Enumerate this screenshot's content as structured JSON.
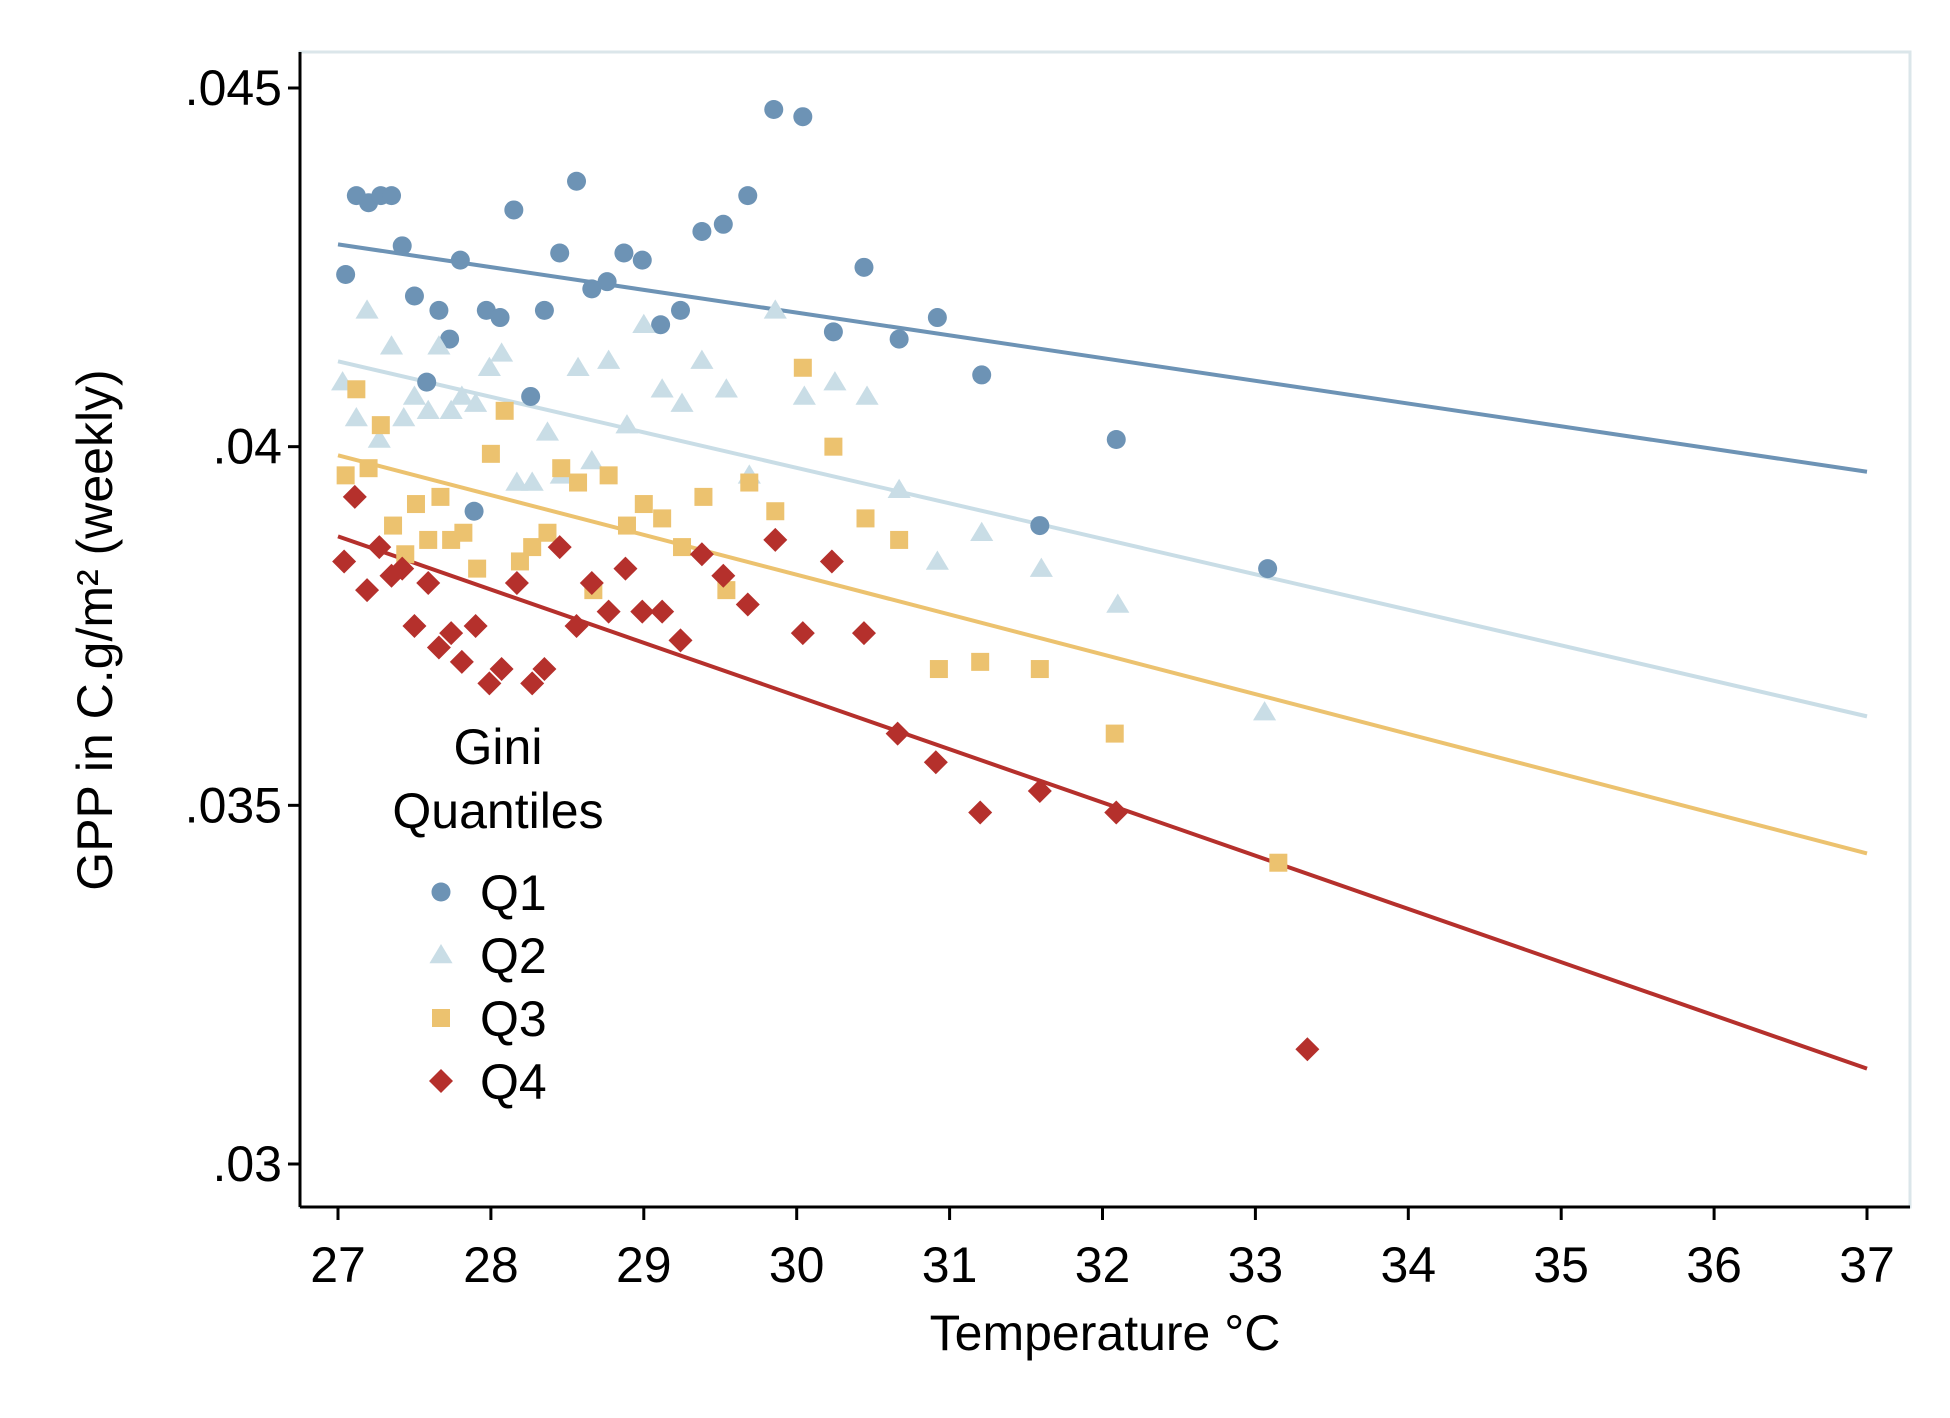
{
  "chart_data": {
    "type": "scatter",
    "title": "",
    "xlabel": "Temperature °C",
    "ylabel": "GPP in C.g/m² (weekly)",
    "xlim": [
      26.76,
      37.2
    ],
    "ylim": [
      0.0295,
      0.0455
    ],
    "x_ticks": [
      27,
      28,
      29,
      30,
      31,
      32,
      33,
      34,
      35,
      36,
      37
    ],
    "x_tick_labels": [
      "27",
      "28",
      "29",
      "30",
      "31",
      "32",
      "33",
      "34",
      "35",
      "36",
      "37"
    ],
    "y_ticks": [
      0.03,
      0.035,
      0.04,
      0.045
    ],
    "y_tick_labels": [
      ".03",
      ".035",
      ".04",
      ".045"
    ],
    "grid": false,
    "legend": {
      "title_lines": [
        "Gini",
        "Quantiles"
      ],
      "position": "lower-left inside"
    },
    "series": [
      {
        "name": "Q1",
        "color": "#6d93b5",
        "marker": "circle",
        "fit": [
          [
            27.0,
            0.04282
          ],
          [
            37.0,
            0.03965
          ]
        ],
        "points": [
          [
            27.05,
            0.0424
          ],
          [
            27.12,
            0.0435
          ],
          [
            27.2,
            0.0434
          ],
          [
            27.28,
            0.0435
          ],
          [
            27.35,
            0.0435
          ],
          [
            27.42,
            0.0428
          ],
          [
            27.5,
            0.0421
          ],
          [
            27.58,
            0.0409
          ],
          [
            27.66,
            0.0419
          ],
          [
            27.73,
            0.0415
          ],
          [
            27.8,
            0.0426
          ],
          [
            27.89,
            0.0391
          ],
          [
            27.97,
            0.0419
          ],
          [
            28.06,
            0.0418
          ],
          [
            28.15,
            0.0433
          ],
          [
            28.26,
            0.0407
          ],
          [
            28.35,
            0.0419
          ],
          [
            28.45,
            0.0427
          ],
          [
            28.56,
            0.0437
          ],
          [
            28.66,
            0.0422
          ],
          [
            28.76,
            0.0423
          ],
          [
            28.87,
            0.0427
          ],
          [
            28.99,
            0.0426
          ],
          [
            29.11,
            0.0417
          ],
          [
            29.24,
            0.0419
          ],
          [
            29.38,
            0.043
          ],
          [
            29.52,
            0.0431
          ],
          [
            29.68,
            0.0435
          ],
          [
            29.85,
            0.0447
          ],
          [
            30.04,
            0.0446
          ],
          [
            30.24,
            0.0416
          ],
          [
            30.44,
            0.0425
          ],
          [
            30.67,
            0.0415
          ],
          [
            30.92,
            0.0418
          ],
          [
            31.21,
            0.041
          ],
          [
            31.59,
            0.0389
          ],
          [
            32.09,
            0.0401
          ],
          [
            33.08,
            0.0383
          ]
        ]
      },
      {
        "name": "Q2",
        "color": "#c9dde6",
        "marker": "triangle",
        "fit": [
          [
            27.0,
            0.04119
          ],
          [
            37.0,
            0.03624
          ]
        ],
        "points": [
          [
            27.03,
            0.0409
          ],
          [
            27.12,
            0.0404
          ],
          [
            27.19,
            0.0419
          ],
          [
            27.27,
            0.0401
          ],
          [
            27.35,
            0.0414
          ],
          [
            27.43,
            0.0404
          ],
          [
            27.5,
            0.0407
          ],
          [
            27.59,
            0.0405
          ],
          [
            27.66,
            0.0414
          ],
          [
            27.74,
            0.0405
          ],
          [
            27.81,
            0.0407
          ],
          [
            27.9,
            0.0406
          ],
          [
            27.99,
            0.0411
          ],
          [
            28.07,
            0.0413
          ],
          [
            28.17,
            0.0395
          ],
          [
            28.27,
            0.0395
          ],
          [
            28.37,
            0.0402
          ],
          [
            28.46,
            0.0396
          ],
          [
            28.57,
            0.0411
          ],
          [
            28.66,
            0.0398
          ],
          [
            28.77,
            0.0412
          ],
          [
            28.89,
            0.0403
          ],
          [
            29.0,
            0.0417
          ],
          [
            29.12,
            0.0408
          ],
          [
            29.25,
            0.0406
          ],
          [
            29.38,
            0.0412
          ],
          [
            29.54,
            0.0408
          ],
          [
            29.69,
            0.0396
          ],
          [
            29.86,
            0.0419
          ],
          [
            30.05,
            0.0407
          ],
          [
            30.25,
            0.0409
          ],
          [
            30.46,
            0.0407
          ],
          [
            30.67,
            0.0394
          ],
          [
            30.92,
            0.0384
          ],
          [
            31.21,
            0.0388
          ],
          [
            31.6,
            0.0383
          ],
          [
            32.1,
            0.0378
          ],
          [
            33.06,
            0.0363
          ]
        ]
      },
      {
        "name": "Q3",
        "color": "#ecc26f",
        "marker": "square",
        "fit": [
          [
            27.0,
            0.03988
          ],
          [
            37.0,
            0.03433
          ]
        ],
        "points": [
          [
            27.05,
            0.0396
          ],
          [
            27.12,
            0.0408
          ],
          [
            27.2,
            0.0397
          ],
          [
            27.28,
            0.0403
          ],
          [
            27.36,
            0.0389
          ],
          [
            27.44,
            0.0385
          ],
          [
            27.51,
            0.0392
          ],
          [
            27.59,
            0.0387
          ],
          [
            27.67,
            0.0393
          ],
          [
            27.74,
            0.0387
          ],
          [
            27.82,
            0.0388
          ],
          [
            27.91,
            0.0383
          ],
          [
            28.0,
            0.0399
          ],
          [
            28.09,
            0.0405
          ],
          [
            28.19,
            0.0384
          ],
          [
            28.27,
            0.0386
          ],
          [
            28.37,
            0.0388
          ],
          [
            28.46,
            0.0397
          ],
          [
            28.57,
            0.0395
          ],
          [
            28.67,
            0.038
          ],
          [
            28.77,
            0.0396
          ],
          [
            28.89,
            0.0389
          ],
          [
            29.0,
            0.0392
          ],
          [
            29.12,
            0.039
          ],
          [
            29.25,
            0.0386
          ],
          [
            29.39,
            0.0393
          ],
          [
            29.54,
            0.038
          ],
          [
            29.69,
            0.0395
          ],
          [
            29.86,
            0.0391
          ],
          [
            30.04,
            0.0411
          ],
          [
            30.24,
            0.04
          ],
          [
            30.45,
            0.039
          ],
          [
            30.67,
            0.0387
          ],
          [
            30.93,
            0.0369
          ],
          [
            31.2,
            0.037
          ],
          [
            31.59,
            0.0369
          ],
          [
            32.08,
            0.036
          ],
          [
            33.15,
            0.0342
          ]
        ]
      },
      {
        "name": "Q4",
        "color": "#b5302c",
        "marker": "diamond",
        "fit": [
          [
            27.0,
            0.03875
          ],
          [
            37.0,
            0.03133
          ]
        ],
        "points": [
          [
            27.04,
            0.0384
          ],
          [
            27.11,
            0.0393
          ],
          [
            27.19,
            0.038
          ],
          [
            27.27,
            0.0386
          ],
          [
            27.35,
            0.0382
          ],
          [
            27.42,
            0.0383
          ],
          [
            27.5,
            0.0375
          ],
          [
            27.59,
            0.0381
          ],
          [
            27.66,
            0.0372
          ],
          [
            27.74,
            0.0374
          ],
          [
            27.81,
            0.037
          ],
          [
            27.9,
            0.0375
          ],
          [
            27.99,
            0.0367
          ],
          [
            28.07,
            0.0369
          ],
          [
            28.17,
            0.0381
          ],
          [
            28.27,
            0.0367
          ],
          [
            28.35,
            0.0369
          ],
          [
            28.45,
            0.0386
          ],
          [
            28.56,
            0.0375
          ],
          [
            28.66,
            0.0381
          ],
          [
            28.77,
            0.0377
          ],
          [
            28.88,
            0.0383
          ],
          [
            28.99,
            0.0377
          ],
          [
            29.12,
            0.0377
          ],
          [
            29.24,
            0.0373
          ],
          [
            29.38,
            0.0385
          ],
          [
            29.52,
            0.0382
          ],
          [
            29.68,
            0.0378
          ],
          [
            29.86,
            0.0387
          ],
          [
            30.04,
            0.0374
          ],
          [
            30.23,
            0.0384
          ],
          [
            30.44,
            0.0374
          ],
          [
            30.66,
            0.036
          ],
          [
            30.91,
            0.0356
          ],
          [
            31.2,
            0.0349
          ],
          [
            31.59,
            0.0352
          ],
          [
            32.09,
            0.0349
          ],
          [
            33.34,
            0.0316
          ]
        ]
      }
    ]
  }
}
